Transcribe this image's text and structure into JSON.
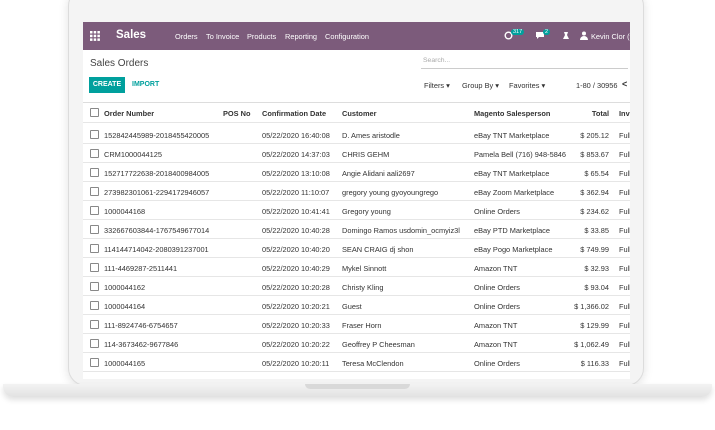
{
  "navbar": {
    "app": "Sales",
    "menu": [
      "Orders",
      "To Invoice",
      "Products",
      "Reporting",
      "Configuration"
    ],
    "activity_count": "317",
    "message_count": "2",
    "user": "Kevin Clor (t"
  },
  "control_panel": {
    "title": "Sales Orders",
    "search_placeholder": "Search...",
    "create": "CREATE",
    "import": "IMPORT",
    "filters": "Filters",
    "group_by": "Group By",
    "favorites": "Favorites",
    "pager": "1-80 / 30956",
    "prev": "<"
  },
  "table": {
    "columns": [
      "Order Number",
      "POS No",
      "Confirmation Date",
      "Customer",
      "Magento Salesperson",
      "Total",
      "Inv"
    ],
    "rows": [
      {
        "order_number": "152842445989-2018455420005",
        "confirmation_date": "05/22/2020 16:40:08",
        "customer": "D. Ames aristodle",
        "salesperson": "eBay TNT Marketplace",
        "total": "$ 205.12",
        "invoice": "Full"
      },
      {
        "order_number": "CRM1000044125",
        "confirmation_date": "05/22/2020 14:37:03",
        "customer": "CHRIS GEHM",
        "salesperson": "Pamela Bell (716) 948-5846",
        "total": "$ 853.67",
        "invoice": "Full"
      },
      {
        "order_number": "152717722638-2018400984005",
        "confirmation_date": "05/22/2020 13:10:08",
        "customer": "Angie Alidani aali2697",
        "salesperson": "eBay TNT Marketplace",
        "total": "$ 65.54",
        "invoice": "Full"
      },
      {
        "order_number": "273982301061-2294172946057",
        "confirmation_date": "05/22/2020 11:10:07",
        "customer": "gregory young gyoyoungrego",
        "salesperson": "eBay Zoom Marketplace",
        "total": "$ 362.94",
        "invoice": "Full"
      },
      {
        "order_number": "1000044168",
        "confirmation_date": "05/22/2020 10:41:41",
        "customer": "Gregory young",
        "salesperson": "Online Orders",
        "total": "$ 234.62",
        "invoice": "Full"
      },
      {
        "order_number": "332667603844-1767549677014",
        "confirmation_date": "05/22/2020 10:40:28",
        "customer": "Domingo Ramos usdomin_ocmyiz3l",
        "salesperson": "eBay PTD Marketplace",
        "total": "$ 33.85",
        "invoice": "Full"
      },
      {
        "order_number": "114144714042-2080391237001",
        "confirmation_date": "05/22/2020 10:40:20",
        "customer": "SEAN CRAIG dj shon",
        "salesperson": "eBay Pogo Marketplace",
        "total": "$ 749.99",
        "invoice": "Full"
      },
      {
        "order_number": "111-4469287-2511441",
        "confirmation_date": "05/22/2020 10:40:29",
        "customer": "Mykel Sinnott",
        "salesperson": "Amazon TNT",
        "total": "$ 32.93",
        "invoice": "Full"
      },
      {
        "order_number": "1000044162",
        "confirmation_date": "05/22/2020 10:20:28",
        "customer": "Christy Kling",
        "salesperson": "Online Orders",
        "total": "$ 93.04",
        "invoice": "Full"
      },
      {
        "order_number": "1000044164",
        "confirmation_date": "05/22/2020 10:20:21",
        "customer": "Guest",
        "salesperson": "Online Orders",
        "total": "$ 1,366.02",
        "invoice": "Full"
      },
      {
        "order_number": "111-8924746-6754657",
        "confirmation_date": "05/22/2020 10:20:33",
        "customer": "Fraser Horn",
        "salesperson": "Amazon TNT",
        "total": "$ 129.99",
        "invoice": "Full"
      },
      {
        "order_number": "114-3673462-9677846",
        "confirmation_date": "05/22/2020 10:20:22",
        "customer": "Geoffrey P Cheesman",
        "salesperson": "Amazon TNT",
        "total": "$ 1,062.49",
        "invoice": "Full"
      },
      {
        "order_number": "1000044165",
        "confirmation_date": "05/22/2020 10:20:11",
        "customer": "Teresa McClendon",
        "salesperson": "Online Orders",
        "total": "$ 116.33",
        "invoice": "Full"
      }
    ]
  }
}
